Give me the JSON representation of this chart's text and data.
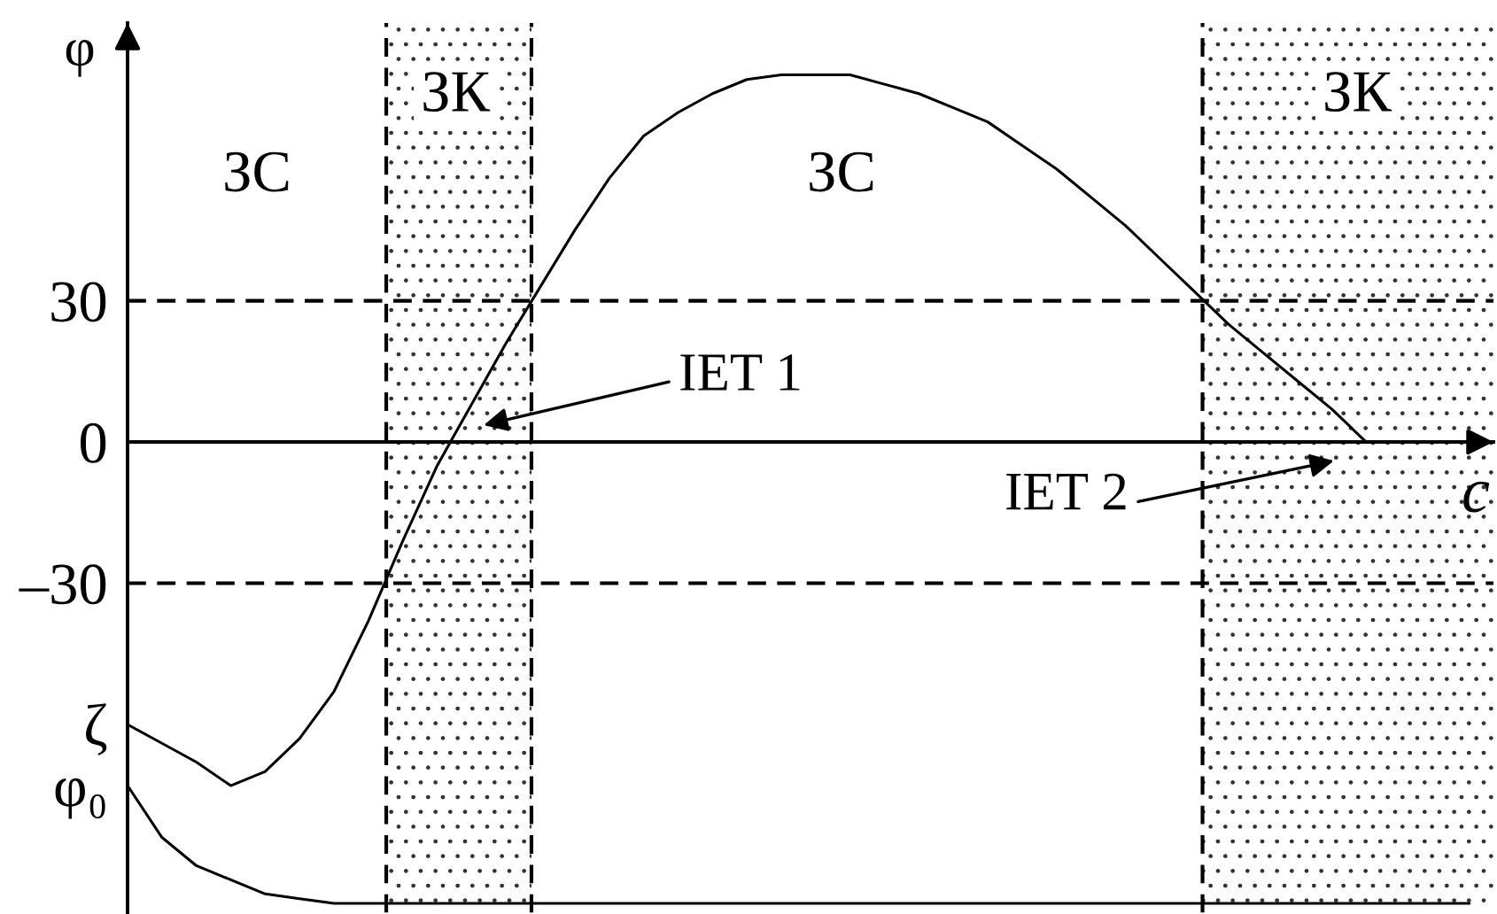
{
  "chart_data": {
    "type": "line",
    "xlabel": "c",
    "ylabel": "φ",
    "categories": [
      null,
      null,
      null,
      null,
      null,
      null,
      null,
      null,
      null,
      null,
      null,
      null,
      null,
      null,
      null,
      null,
      null,
      null,
      null,
      null,
      null,
      null,
      null,
      null,
      null,
      null,
      null,
      null,
      null,
      null,
      null,
      null,
      null,
      null,
      null,
      null,
      null,
      null,
      null,
      null
    ],
    "series": [
      {
        "color": "#000000",
        "values": [
          -60,
          -64,
          -68,
          -73,
          -70,
          -63,
          -53,
          -38,
          -21,
          -5,
          8,
          21,
          33,
          45,
          56,
          65,
          70,
          74,
          77,
          78,
          78,
          78,
          76,
          74,
          71,
          68,
          63,
          58,
          52,
          46,
          39,
          32,
          25,
          19,
          13,
          7,
          0,
          null,
          null,
          null
        ]
      },
      {
        "color": "#000000",
        "values": [
          -73,
          -84,
          -90,
          -93,
          -96,
          -97,
          -98,
          -98,
          -98,
          -98,
          -98,
          -98,
          -98,
          -98,
          -98,
          -98,
          -98,
          -98,
          -98,
          -98,
          -98,
          -98,
          -98,
          -98,
          -98,
          -98,
          -98,
          -98,
          -98,
          -98,
          -98,
          -98,
          -98,
          -98,
          -98,
          -98,
          -98,
          -98,
          -98,
          -98
        ]
      }
    ],
    "ylim": [
      -100,
      89
    ],
    "yticks": [
      {
        "value": -73,
        "label": "φ₀"
      },
      {
        "value": -60,
        "label": "ζ"
      },
      {
        "value": -30,
        "label": "–30"
      },
      0,
      30
    ],
    "tick_labels": "y",
    "ref_lines": [
      {
        "axis": "y",
        "value": 30,
        "line_style": "dashed",
        "color": "#000000"
      },
      {
        "axis": "y",
        "value": -30,
        "line_style": "dashed",
        "color": "#000000"
      }
    ],
    "annotations": [
      "ЗС",
      "ЗК",
      "ЗС",
      "ЗК",
      "IET 1",
      "IET 2"
    ]
  }
}
